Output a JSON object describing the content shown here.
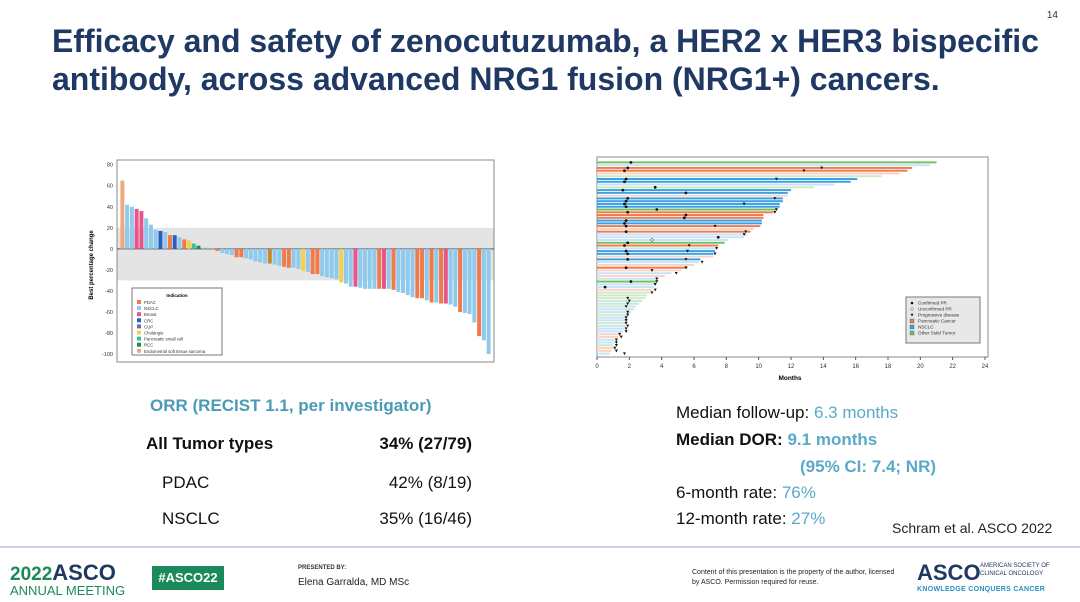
{
  "page_number": "14",
  "title": "Efficacy and safety of zenocutuzumab, a HER2 x HER3 bispecific antibody, across advanced NRG1 fusion (NRG1+) cancers.",
  "orr": {
    "heading": "ORR (RECIST 1.1, per investigator)",
    "rows": [
      {
        "label": "All Tumor types",
        "value": "34% (27/79)"
      },
      {
        "label": "PDAC",
        "value": "42% (8/19)"
      },
      {
        "label": "NSCLC",
        "value": "35% (16/46)"
      }
    ]
  },
  "stats": {
    "followup_label": "Median follow-up:",
    "followup_value": "6.3 months",
    "dor_label": "Median DOR:",
    "dor_value": "9.1 months",
    "dor_ci": "(95% CI: 7.4; NR)",
    "m6_label": "6-month rate:",
    "m6_value": "76%",
    "m12_label": "12-month rate:",
    "m12_value": "27%"
  },
  "citation": "Schram et al. ASCO 2022",
  "footer": {
    "meeting_year": "2022",
    "meeting_brand": "ASCO",
    "meeting_sub": "ANNUAL MEETING",
    "hashtag": "#ASCO22",
    "presented_by": "PRESENTED BY:",
    "presenter": "Elena Garralda, MD MSc",
    "disclaimer": "Content of this presentation is the property of the author, licensed by ASCO. Permission required for reuse.",
    "asco_logo": "ASCO",
    "asco_full": "AMERICAN SOCIETY OF CLINICAL ONCOLOGY",
    "tagline": "KNOWLEDGE CONQUERS CANCER"
  },
  "chart_data": [
    {
      "type": "bar",
      "ylabel": "Best percentage change",
      "ylim": [
        -100,
        80
      ],
      "yticks": [
        80,
        60,
        40,
        20,
        0,
        -20,
        -40,
        -60,
        -80,
        -100
      ],
      "shaded_bands": [
        [
          0,
          20
        ],
        [
          -30,
          0
        ]
      ],
      "legend_title": "Indication",
      "legend_placement": "bottom-left",
      "legend": [
        {
          "name": "PDAC",
          "color": "#f07a4a"
        },
        {
          "name": "NSCLC",
          "color": "#8fc9ee"
        },
        {
          "name": "Breast",
          "color": "#e8558a"
        },
        {
          "name": "CRC",
          "color": "#2a5fbf"
        },
        {
          "name": "CUP",
          "color": "#7a5fc0"
        },
        {
          "name": "Cholangio",
          "color": "#f5d04a"
        },
        {
          "name": "Pancreatic small cell",
          "color": "#2ec4a0"
        },
        {
          "name": "RCC",
          "color": "#1a8f50"
        },
        {
          "name": "Endometrial soft tissue sarcoma",
          "color": "#f0a880"
        }
      ],
      "values": [
        65,
        42,
        40,
        38,
        36,
        29,
        23,
        18,
        17,
        16,
        13,
        13,
        11,
        9,
        8,
        5,
        3,
        1,
        1,
        0.5,
        -2,
        -4,
        -5,
        -6,
        -8,
        -8,
        -9,
        -10,
        -12,
        -13,
        -14,
        -14,
        -15,
        -16,
        -17,
        -18,
        -18,
        -19,
        -21,
        -22,
        -24,
        -24,
        -26,
        -27,
        -28,
        -29,
        -32,
        -33,
        -36,
        -36,
        -37,
        -38,
        -38,
        -38,
        -38,
        -38,
        -38,
        -39,
        -41,
        -42,
        -44,
        -46,
        -47,
        -47,
        -49,
        -51,
        -51,
        -52,
        -52,
        -53,
        -55,
        -60,
        -61,
        -62,
        -70,
        -83,
        -87,
        -100
      ],
      "indications": [
        "Endometrial soft tissue sarcoma",
        "NSCLC",
        "NSCLC",
        "Breast",
        "Breast",
        "NSCLC",
        "NSCLC",
        "NSCLC",
        "CRC",
        "NSCLC",
        "PDAC",
        "CRC",
        "NSCLC",
        "PDAC",
        "Cholangio",
        "Pancreatic small cell",
        "RCC",
        "NSCLC",
        "NSCLC",
        "NSCLC",
        "PDAC",
        "NSCLC",
        "NSCLC",
        "NSCLC",
        "PDAC",
        "PDAC",
        "NSCLC",
        "NSCLC",
        "NSCLC",
        "NSCLC",
        "NSCLC",
        "CUP",
        "NSCLC",
        "NSCLC",
        "PDAC",
        "PDAC",
        "NSCLC",
        "NSCLC",
        "Cholangio",
        "NSCLC",
        "PDAC",
        "PDAC",
        "NSCLC",
        "NSCLC",
        "NSCLC",
        "NSCLC",
        "Cholangio",
        "NSCLC",
        "NSCLC",
        "Breast",
        "NSCLC",
        "NSCLC",
        "NSCLC",
        "NSCLC",
        "PDAC",
        "Breast",
        "NSCLC",
        "PDAC",
        "NSCLC",
        "NSCLC",
        "NSCLC",
        "NSCLC",
        "PDAC",
        "PDAC",
        "NSCLC",
        "PDAC",
        "NSCLC",
        "PDAC",
        "Breast",
        "NSCLC",
        "NSCLC",
        "PDAC",
        "NSCLC",
        "NSCLC",
        "NSCLC",
        "PDAC",
        "NSCLC",
        "NSCLC"
      ]
    },
    {
      "type": "swimmer",
      "xlabel": "Months",
      "xlim": [
        0,
        24
      ],
      "xticks": [
        0,
        2,
        4,
        6,
        8,
        10,
        12,
        14,
        16,
        18,
        20,
        22,
        24
      ],
      "legend_placement": "bottom-right",
      "legend": [
        {
          "name": "Confirmed PR",
          "marker": "filled-circle"
        },
        {
          "name": "Unconfirmed PR",
          "marker": "open-circle"
        },
        {
          "name": "Progressive disease",
          "marker": "triangle-down"
        },
        {
          "name": "Pancreatic Cancer",
          "color": "#f07a4a"
        },
        {
          "name": "NSCLC",
          "color": "#3aa0e6"
        },
        {
          "name": "Other Solid Tumor",
          "color": "#70c060"
        }
      ],
      "rows": [
        {
          "d": 21,
          "t": "G",
          "r": 1,
          "pr": 2.1
        },
        {
          "d": 20.6,
          "t": "N"
        },
        {
          "d": 19.5,
          "t": "P",
          "r": 1,
          "pr": 1.9,
          "pd": 13.9
        },
        {
          "d": 19.2,
          "t": "P",
          "r": 1,
          "pr": 1.7,
          "pd": 12.8
        },
        {
          "d": 18.7,
          "t": "P"
        },
        {
          "d": 17.6,
          "t": "G"
        },
        {
          "d": 16.1,
          "t": "N",
          "r": 1,
          "pr": 1.8,
          "pd": 11.1
        },
        {
          "d": 15.7,
          "t": "N",
          "r": 1,
          "pr": 1.7
        },
        {
          "d": 14.7,
          "t": "N"
        },
        {
          "d": 13.4,
          "t": "G",
          "pr": 3.6
        },
        {
          "d": 12,
          "t": "N",
          "r": 1,
          "pr": 1.6
        },
        {
          "d": 11.8,
          "t": "N",
          "r": 1,
          "pr": 5.5
        },
        {
          "d": 11.8,
          "t": "P"
        },
        {
          "d": 11.5,
          "t": "N",
          "r": 1,
          "pr": 1.9,
          "pd": 11
        },
        {
          "d": 11.5,
          "t": "N",
          "r": 1,
          "pr": 1.8
        },
        {
          "d": 11.3,
          "t": "N",
          "r": 1,
          "pr": 1.7,
          "pd": 9.1
        },
        {
          "d": 11.3,
          "t": "N",
          "r": 1,
          "pr": 1.8
        },
        {
          "d": 11.1,
          "t": "G",
          "r": 1,
          "pr": 3.7,
          "pd": 11.1
        },
        {
          "d": 10.9,
          "t": "P",
          "r": 1,
          "pr": 1.9,
          "pd": 11
        },
        {
          "d": 10.3,
          "t": "P",
          "r": 1,
          "pr": 5.5
        },
        {
          "d": 10.3,
          "t": "P",
          "r": 1,
          "pr": 5.4
        },
        {
          "d": 10.2,
          "t": "N",
          "r": 1,
          "pr": 1.8
        },
        {
          "d": 10.2,
          "t": "N",
          "r": 1,
          "pr": 1.7
        },
        {
          "d": 10.1,
          "t": "P",
          "r": 1,
          "pr": 1.8,
          "pd": 7.3
        },
        {
          "d": 9.7,
          "t": "P"
        },
        {
          "d": 9.5,
          "t": "P",
          "r": 1,
          "pr": 1.8,
          "pd": 9.2
        },
        {
          "d": 9.3,
          "t": "N",
          "pd": 9.1
        },
        {
          "d": 9.1,
          "t": "N",
          "pr": 7.5
        },
        {
          "d": 8.1,
          "t": "N",
          "upr": 3.4
        },
        {
          "d": 7.9,
          "t": "G",
          "r": 1,
          "pr": 1.9
        },
        {
          "d": 7.5,
          "t": "P",
          "r": 1,
          "pr": 1.7,
          "pd": 5.7
        },
        {
          "d": 7.4,
          "t": "N",
          "pd": 7.4
        },
        {
          "d": 7.3,
          "t": "N",
          "r": 1,
          "pr": 1.8,
          "pd": 5.6
        },
        {
          "d": 7.2,
          "t": "N",
          "r": 1,
          "pr": 1.9,
          "pd": 7.3
        },
        {
          "d": 7.2,
          "t": "P"
        },
        {
          "d": 6.4,
          "t": "N",
          "r": 1,
          "pr": 1.9,
          "pd": 5.5
        },
        {
          "d": 6.3,
          "t": "N",
          "pd": 6.5
        },
        {
          "d": 6,
          "t": "P"
        },
        {
          "d": 5.6,
          "t": "P",
          "r": 1,
          "pr": 1.8,
          "pd": 5.5
        },
        {
          "d": 5.2,
          "t": "P",
          "pd": 3.4
        },
        {
          "d": 4.6,
          "t": "N",
          "pd": 4.9
        },
        {
          "d": 4.2,
          "t": "P"
        },
        {
          "d": 3.8,
          "t": "N",
          "pd": 3.7
        },
        {
          "d": 3.7,
          "t": "G",
          "r": 1,
          "pr": 2.1,
          "pd": 3.7
        },
        {
          "d": 3.6,
          "t": "N",
          "pd": 3.6
        },
        {
          "d": 3.5,
          "t": "N",
          "pr": 0.5
        },
        {
          "d": 3.4,
          "t": "P",
          "pd": 3.6
        },
        {
          "d": 3.3,
          "t": "G",
          "pd": 3.4
        },
        {
          "d": 3.1,
          "t": "G"
        },
        {
          "d": 3,
          "t": "G",
          "pd": 1.9
        },
        {
          "d": 2.8,
          "t": "G",
          "pd": 2
        },
        {
          "d": 2.6,
          "t": "N",
          "pd": 1.9
        },
        {
          "d": 2.4,
          "t": "G",
          "pd": 1.8
        },
        {
          "d": 2.3,
          "t": "N"
        },
        {
          "d": 2.1,
          "t": "N",
          "pd": 1.9
        },
        {
          "d": 2,
          "t": "G",
          "pd": 1.9
        },
        {
          "d": 1.9,
          "t": "N",
          "pd": 1.8
        },
        {
          "d": 1.9,
          "t": "N",
          "pd": 1.8
        },
        {
          "d": 1.8,
          "t": "G",
          "pd": 1.8
        },
        {
          "d": 1.8,
          "t": "N",
          "pd": 1.9
        },
        {
          "d": 1.7,
          "t": "N",
          "pd": 1.8
        },
        {
          "d": 1.6,
          "t": "N",
          "pd": 1.8
        },
        {
          "d": 1.5,
          "t": "P",
          "pd": 1.4
        },
        {
          "d": 1.3,
          "t": "P",
          "pd": 1.5
        },
        {
          "d": 1.2,
          "t": "N",
          "pd": 1.2
        },
        {
          "d": 1.1,
          "t": "N",
          "pd": 1.2
        },
        {
          "d": 1,
          "t": "G",
          "pd": 1.2
        },
        {
          "d": 1,
          "t": "P",
          "pd": 1.1
        },
        {
          "d": 0.9,
          "t": "P",
          "pd": 1.2
        },
        {
          "d": 0.8,
          "t": "N",
          "pd": 1.7
        }
      ]
    }
  ]
}
